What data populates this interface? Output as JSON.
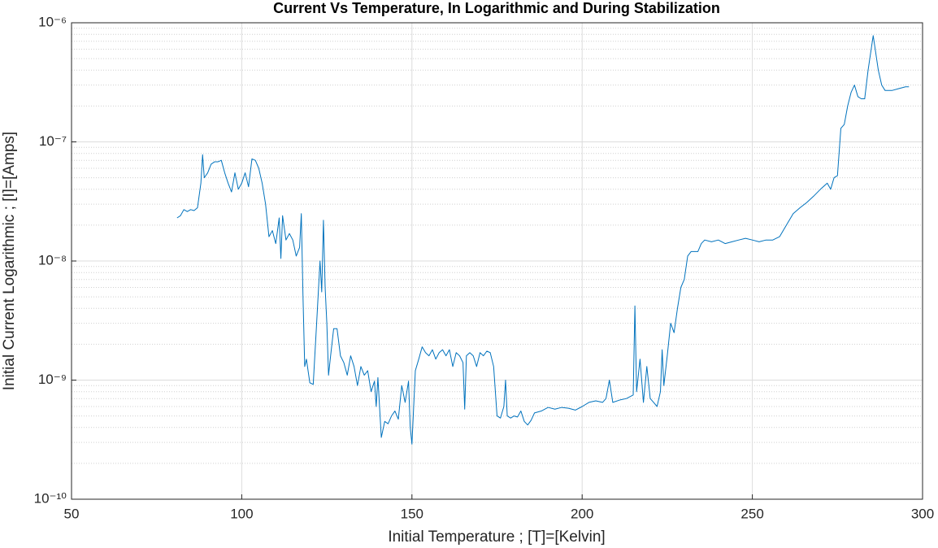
{
  "chart_data": {
    "type": "line",
    "title": "Current Vs Temperature, In Logarithmic and During Stabilization",
    "x_label": "Initial Temperature ; [T]=[Kelvin]",
    "y_label": "Initial Current Logarithmic ; [I]=[Amps]",
    "y_scale": "log",
    "grid": true,
    "color": "#0072bd",
    "xlim": [
      50,
      300
    ],
    "xticks": [
      50,
      100,
      150,
      200,
      250,
      300
    ],
    "ylim": [
      1e-10,
      1e-06
    ],
    "yticks": [
      {
        "value": 1e-10,
        "label": "10⁻¹⁰"
      },
      {
        "value": 1e-09,
        "label": "10⁻⁹"
      },
      {
        "value": 1e-08,
        "label": "10⁻⁸"
      },
      {
        "value": 1e-07,
        "label": "10⁻⁷"
      },
      {
        "value": 1e-06,
        "label": "10⁻⁶"
      }
    ],
    "x": [
      81,
      82,
      83,
      84,
      85,
      86,
      87,
      88,
      88.5,
      89,
      90,
      91,
      92,
      93,
      94,
      95,
      96,
      97,
      98,
      99,
      100,
      101,
      102,
      103,
      104,
      105,
      106,
      107,
      108,
      109,
      110,
      111,
      111.5,
      112,
      113,
      114,
      115,
      116,
      117,
      117.5,
      118,
      118.5,
      119,
      120,
      121,
      122,
      123,
      123.5,
      124,
      124.5,
      125,
      125.5,
      126,
      127,
      128,
      129,
      130,
      131,
      132,
      133,
      134,
      135,
      136,
      137,
      138,
      139,
      139.5,
      140,
      141,
      142,
      143,
      144,
      145,
      146,
      147,
      148,
      149,
      149.5,
      150,
      151,
      152,
      153,
      154,
      155,
      156,
      157,
      158,
      159,
      160,
      161,
      162,
      163,
      164,
      165,
      165.5,
      166,
      167,
      168,
      169,
      170,
      171,
      172,
      173,
      174,
      175,
      176,
      177,
      177.5,
      178,
      179,
      180,
      181,
      182,
      183,
      184,
      185,
      186,
      188,
      190,
      192,
      194,
      196,
      198,
      200,
      202,
      204,
      206,
      207,
      208,
      209,
      211,
      213,
      215,
      215.5,
      216,
      217,
      218,
      219,
      220,
      221,
      222,
      223,
      223.5,
      224,
      225,
      226,
      227,
      228,
      229,
      230,
      231,
      232,
      234,
      235,
      236,
      238,
      240,
      242,
      244,
      246,
      248,
      250,
      252,
      254,
      256,
      258,
      260,
      262,
      264,
      266,
      268,
      270,
      272,
      273,
      274,
      275,
      276,
      277,
      278,
      279,
      280,
      281,
      282,
      283,
      284,
      285.5,
      287,
      288,
      289,
      291,
      293,
      295,
      296
    ],
    "values": [
      2.3e-08,
      2.4e-08,
      2.7e-08,
      2.6e-08,
      2.7e-08,
      2.65e-08,
      2.8e-08,
      4.5e-08,
      7.8e-08,
      5e-08,
      5.5e-08,
      6.5e-08,
      6.8e-08,
      6.8e-08,
      7e-08,
      5.5e-08,
      4.5e-08,
      3.8e-08,
      5.5e-08,
      4e-08,
      4.5e-08,
      5.5e-08,
      4.2e-08,
      7.2e-08,
      7e-08,
      6e-08,
      4.5e-08,
      3e-08,
      1.6e-08,
      1.8e-08,
      1.4e-08,
      2.3e-08,
      1.05e-08,
      2.4e-08,
      1.5e-08,
      1.7e-08,
      1.5e-08,
      1.1e-08,
      1.3e-08,
      2.5e-08,
      5e-09,
      1.3e-09,
      1.5e-09,
      9.5e-10,
      9.2e-10,
      3e-09,
      1e-08,
      5.5e-09,
      2.2e-08,
      6e-09,
      3e-09,
      1.1e-09,
      1.5e-09,
      2.7e-09,
      2.7e-09,
      1.6e-09,
      1.4e-09,
      1.1e-09,
      1.6e-09,
      1.3e-09,
      9e-10,
      1.3e-09,
      1.1e-09,
      1.2e-09,
      8e-10,
      9.8e-10,
      6e-10,
      1.05e-09,
      3.3e-10,
      4.5e-10,
      4.3e-10,
      5e-10,
      5.5e-10,
      4.7e-10,
      9e-10,
      6.5e-10,
      9.8e-10,
      4e-10,
      2.9e-10,
      1.2e-09,
      1.5e-09,
      1.9e-09,
      1.7e-09,
      1.6e-09,
      1.8e-09,
      1.5e-09,
      1.7e-09,
      1.8e-09,
      1.6e-09,
      1.8e-09,
      1.3e-09,
      1.7e-09,
      1.6e-09,
      1.4e-09,
      5.7e-10,
      1.6e-09,
      1.7e-09,
      1.6e-09,
      1.3e-09,
      1.7e-09,
      1.6e-09,
      1.75e-09,
      1.7e-09,
      1.3e-09,
      5e-10,
      4.8e-10,
      6e-10,
      1e-09,
      5e-10,
      4.8e-10,
      5e-10,
      4.9e-10,
      5.5e-10,
      4.5e-10,
      4.2e-10,
      4.6e-10,
      5.3e-10,
      5.5e-10,
      5.9e-10,
      5.7e-10,
      5.9e-10,
      5.8e-10,
      5.6e-10,
      6e-10,
      6.5e-10,
      6.7e-10,
      6.5e-10,
      7e-10,
      1e-09,
      6.5e-10,
      6.8e-10,
      7e-10,
      7.5e-10,
      4.2e-09,
      8e-10,
      1.5e-09,
      6.5e-10,
      1.3e-09,
      7e-10,
      6.5e-10,
      6e-10,
      8e-10,
      1.8e-09,
      9e-10,
      1.6e-09,
      3e-09,
      2.5e-09,
      4e-09,
      6e-09,
      7e-09,
      1.1e-08,
      1.2e-08,
      1.2e-08,
      1.4e-08,
      1.5e-08,
      1.45e-08,
      1.5e-08,
      1.4e-08,
      1.45e-08,
      1.5e-08,
      1.55e-08,
      1.5e-08,
      1.45e-08,
      1.5e-08,
      1.5e-08,
      1.6e-08,
      2e-08,
      2.5e-08,
      2.8e-08,
      3.1e-08,
      3.5e-08,
      4e-08,
      4.5e-08,
      4e-08,
      5e-08,
      5.2e-08,
      1.3e-07,
      1.4e-07,
      2e-07,
      2.6e-07,
      3e-07,
      2.4e-07,
      2.3e-07,
      2.3e-07,
      4e-07,
      7.8e-07,
      4e-07,
      3e-07,
      2.7e-07,
      2.7e-07,
      2.8e-07,
      2.9e-07,
      2.9e-07
    ]
  }
}
